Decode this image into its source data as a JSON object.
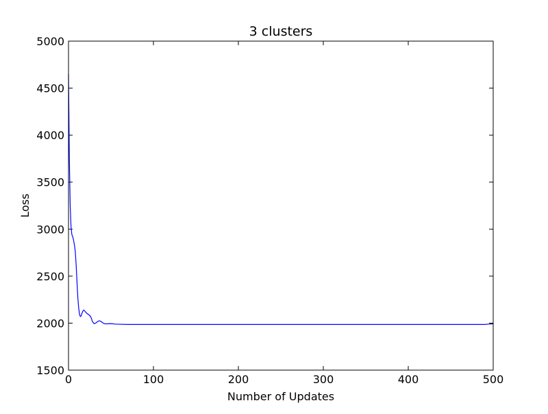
{
  "chart_data": {
    "type": "line",
    "title": "3 clusters",
    "xlabel": "Number of Updates",
    "ylabel": "Loss",
    "xlim": [
      0,
      500
    ],
    "ylim": [
      1500,
      5000
    ],
    "x_ticks": [
      0,
      100,
      200,
      300,
      400,
      500
    ],
    "y_ticks": [
      1500,
      2000,
      2500,
      3000,
      3500,
      4000,
      4500,
      5000
    ],
    "grid": false,
    "legend": "none",
    "series": [
      {
        "color": "#0000ff",
        "x": [
          0,
          1,
          2,
          3,
          4,
          5,
          6,
          7,
          8,
          9,
          10,
          11,
          12,
          13,
          14,
          15,
          16,
          17,
          18,
          19,
          20,
          22,
          24,
          26,
          27,
          28,
          30,
          32,
          34,
          36,
          38,
          40,
          42,
          44,
          46,
          50,
          55,
          60,
          70,
          100,
          150,
          200,
          250,
          300,
          350,
          400,
          450,
          490,
          495,
          500
        ],
        "y": [
          4650,
          3750,
          3250,
          3020,
          2940,
          2920,
          2880,
          2830,
          2760,
          2620,
          2440,
          2270,
          2160,
          2090,
          2070,
          2080,
          2110,
          2130,
          2140,
          2130,
          2120,
          2100,
          2090,
          2070,
          2050,
          2020,
          1995,
          2000,
          2015,
          2025,
          2020,
          2005,
          1995,
          1992,
          1993,
          1995,
          1990,
          1988,
          1986,
          1986,
          1986,
          1986,
          1986,
          1986,
          1986,
          1986,
          1986,
          1986,
          1990,
          1992
        ]
      }
    ]
  }
}
